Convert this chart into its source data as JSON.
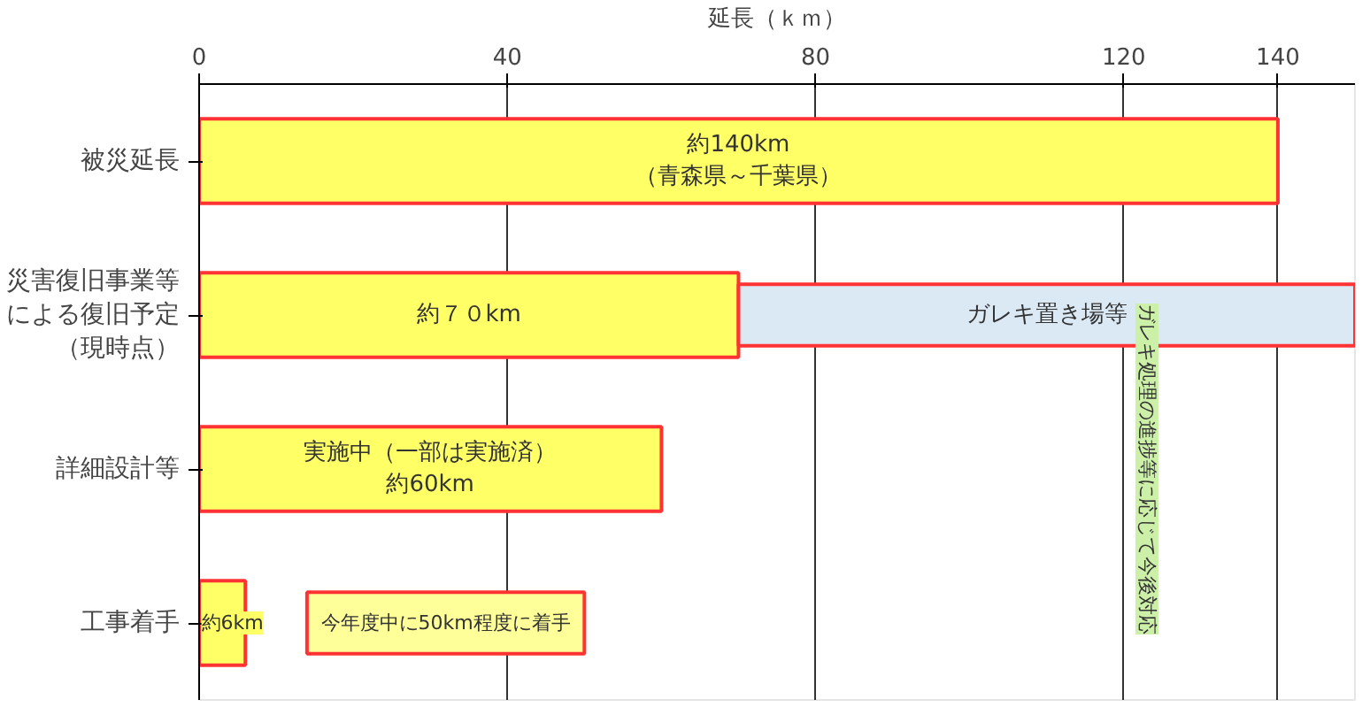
{
  "chart_data": {
    "type": "bar",
    "orientation": "horizontal",
    "xlabel": "延長（ｋｍ）",
    "categories": [
      "被災延長",
      "災害復旧事業等による復旧予定（現時点）",
      "詳細設計等",
      "工事着手"
    ],
    "series": [
      {
        "color": "#ffff66",
        "values": [
          140,
          70,
          60,
          6
        ],
        "value_labels": [
          "約140km（青森県～千葉県）",
          "約７０km",
          "実施中（一部は実施済）約60km",
          "約6km"
        ]
      },
      {
        "base": [
          null,
          70,
          null,
          14
        ],
        "values": [
          null,
          80,
          null,
          36
        ],
        "colors": [
          null,
          "#dbe9f5",
          null,
          "#ffff99"
        ],
        "value_labels": [
          null,
          "ガレキ置き場等",
          null,
          "今年度中に50km程度に着手"
        ]
      }
    ],
    "xlim": [
      0,
      150
    ],
    "xticks": [
      0,
      40,
      80,
      120,
      140
    ],
    "grid": "x",
    "annotations": [
      "ガレキ処理の進捗等に応じて今後対応"
    ]
  }
}
